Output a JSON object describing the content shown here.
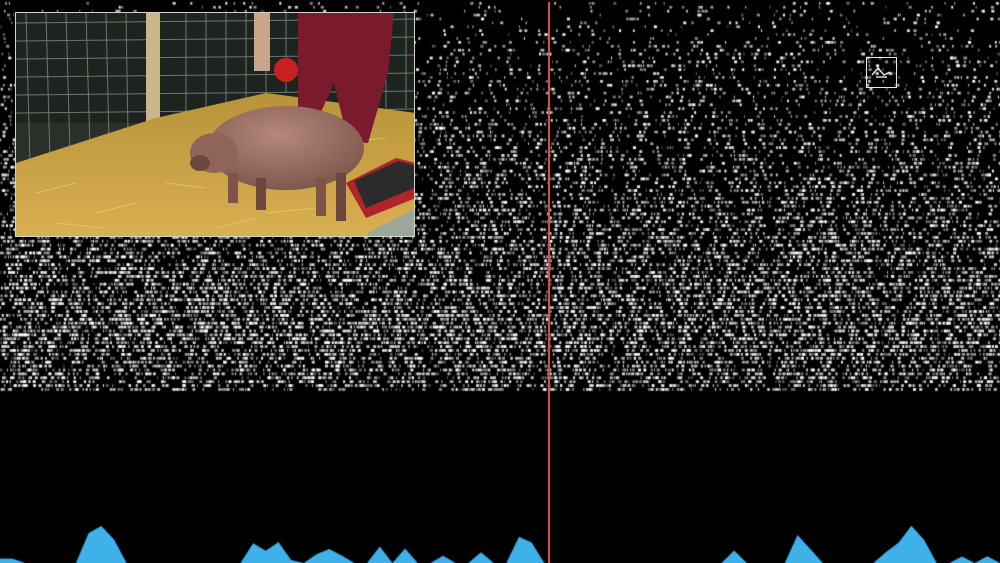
{
  "colors": {
    "background": "#000000",
    "spike": "#ffffff",
    "playhead": "#e0485a",
    "histogram": "#3fb1ea",
    "inset_border": "#cfd3c8",
    "logo": "#e8e8e8"
  },
  "video": {
    "subject": "pig-in-straw-pen-icon"
  },
  "logo": {
    "icon": "waveform-logo-icon"
  },
  "raster": {
    "neuron_rows": 100,
    "density_profile": [
      0.1,
      0.18,
      0.22,
      0.3,
      0.35,
      0.45,
      0.55,
      0.65,
      0.75,
      0.6,
      0.5
    ]
  },
  "playback": {
    "position_fraction": 0.548
  },
  "activity_histogram": {
    "values": [
      0.1,
      0.1,
      0.0,
      0.0,
      0.0,
      0.0,
      0.0,
      0.8,
      0.9,
      0.6,
      0.0,
      0.0,
      0.0,
      0.0,
      0.0,
      0.0,
      0.0,
      0.0,
      0.0,
      0.0,
      0.5,
      0.3,
      0.5,
      0.1,
      0.0,
      0.2,
      0.3,
      0.2,
      0.0,
      0.0,
      0.4,
      0.0,
      0.4,
      0.0,
      0.0,
      0.2,
      0.0,
      0.0,
      0.3,
      0.0,
      0.0,
      0.7,
      0.5,
      0.0,
      0.0,
      0.0,
      0.0,
      0.0,
      0.0,
      0.0,
      0.0,
      0.0,
      0.0,
      0.0,
      0.0,
      0.0,
      0.0,
      0.0,
      0.3,
      0.0,
      0.0,
      0.0,
      0.0,
      0.7,
      0.4,
      0.0,
      0.0,
      0.0,
      0.0,
      0.0,
      0.3,
      0.5,
      0.9,
      0.6,
      0.0,
      0.0,
      0.2,
      0.0,
      0.2,
      0.0
    ]
  }
}
